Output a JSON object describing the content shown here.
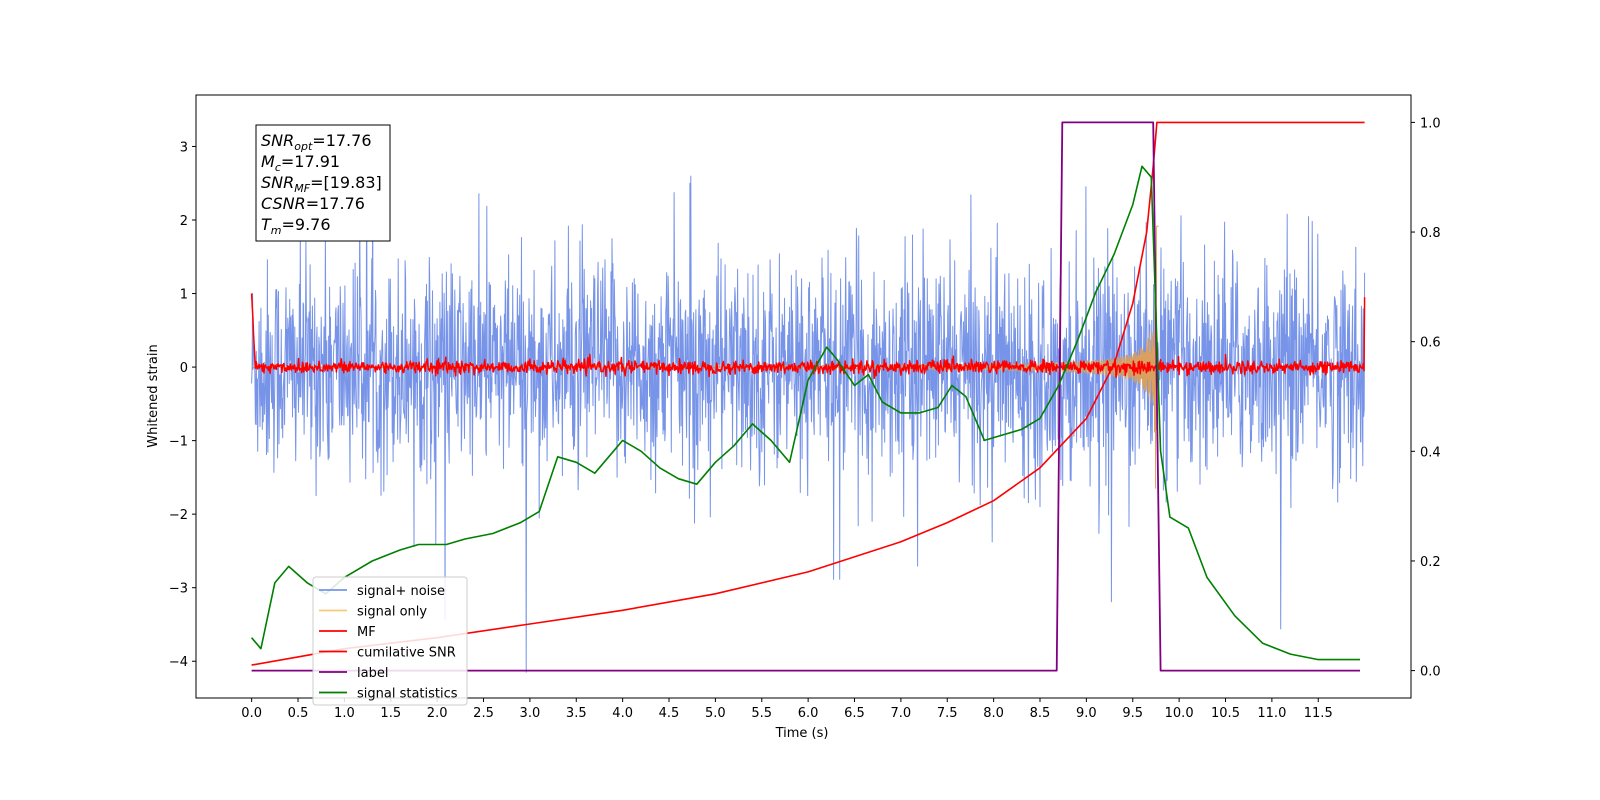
{
  "chart_data": {
    "type": "line",
    "xlabel": "Time (s)",
    "ylabel": "Whitened strain",
    "xlim": [
      -0.6,
      12.5
    ],
    "ylim_left": [
      -4.5,
      3.7
    ],
    "ylim_right": [
      -0.05,
      1.05
    ],
    "x_ticks": [
      0.0,
      0.5,
      1.0,
      1.5,
      2.0,
      2.5,
      3.0,
      3.5,
      4.0,
      4.5,
      5.0,
      5.5,
      6.0,
      6.5,
      7.0,
      7.5,
      8.0,
      8.5,
      9.0,
      9.5,
      10.0,
      10.5,
      11.0,
      11.5
    ],
    "x_tick_labels": [
      "0.0",
      "0.5",
      "1.0",
      "1.5",
      "2.0",
      "2.5",
      "3.0",
      "3.5",
      "4.0",
      "4.5",
      "5.0",
      "5.5",
      "6.0",
      "6.5",
      "7.0",
      "7.5",
      "8.0",
      "8.5",
      "9.0",
      "9.5",
      "10.0",
      "10.5",
      "11.0",
      "11.5"
    ],
    "y_ticks_left": [
      3,
      2,
      1,
      0,
      -1,
      -2,
      -3,
      -4
    ],
    "y_tick_labels_left": [
      "3",
      "2",
      "1",
      "0",
      "−1",
      "−2",
      "−3",
      "−4"
    ],
    "y_ticks_right": [
      1.0,
      0.8,
      0.6,
      0.4,
      0.2,
      0.0
    ],
    "y_tick_labels_right": [
      "1.0",
      "0.8",
      "0.6",
      "0.4",
      "0.2",
      "0.0"
    ],
    "grid": false,
    "legend_position": "lower-left",
    "annotation": {
      "lines": [
        {
          "main": "SNR",
          "sub": "opt",
          "value": "=17.76"
        },
        {
          "main": "M",
          "sub": "c",
          "value": "=17.91"
        },
        {
          "main": "SNR",
          "sub": "MF",
          "value": "=[19.83]"
        },
        {
          "main": "CSNR",
          "sub": "",
          "value": "=17.76"
        },
        {
          "main": "T",
          "sub": "m",
          "value": "=9.76"
        }
      ]
    },
    "series": [
      {
        "name": "signal+ noise",
        "color": "#7794e8",
        "axis": "left",
        "style": "noise",
        "x_range": [
          0.0,
          12.0
        ],
        "amplitude": 2.2
      },
      {
        "name": "signal only",
        "color": "#f5c97a",
        "axis": "left",
        "style": "chirp",
        "merger_time": 9.76,
        "peak_amplitude": 2.3
      },
      {
        "name": "MF",
        "color": "#ff0000",
        "axis": "left",
        "style": "noise",
        "x_range": [
          0.0,
          12.0
        ],
        "amplitude": 0.12,
        "edge_value": 1.0
      },
      {
        "name": "cumilative SNR",
        "color": "#ff0000",
        "axis": "right",
        "x": [
          0.0,
          0.5,
          1.0,
          2.0,
          3.0,
          4.0,
          5.0,
          6.0,
          7.0,
          7.5,
          8.0,
          8.5,
          9.0,
          9.3,
          9.5,
          9.65,
          9.72,
          9.76,
          12.0
        ],
        "y": [
          0.01,
          0.025,
          0.04,
          0.06,
          0.085,
          0.11,
          0.14,
          0.18,
          0.235,
          0.27,
          0.31,
          0.37,
          0.46,
          0.56,
          0.67,
          0.8,
          0.92,
          1.0,
          1.0
        ]
      },
      {
        "name": "label",
        "color": "#800080",
        "axis": "right",
        "x": [
          0.0,
          8.68,
          8.74,
          9.72,
          9.8,
          11.95
        ],
        "y": [
          0.0,
          0.0,
          1.0,
          1.0,
          0.0,
          0.0
        ]
      },
      {
        "name": "signal statistics",
        "color": "#008000",
        "axis": "right",
        "x": [
          0.0,
          0.1,
          0.25,
          0.4,
          0.6,
          0.8,
          1.0,
          1.3,
          1.6,
          1.8,
          2.1,
          2.3,
          2.6,
          2.9,
          3.1,
          3.3,
          3.5,
          3.7,
          3.9,
          4.0,
          4.2,
          4.4,
          4.6,
          4.8,
          5.0,
          5.2,
          5.4,
          5.6,
          5.8,
          6.0,
          6.2,
          6.3,
          6.5,
          6.65,
          6.8,
          7.0,
          7.2,
          7.4,
          7.55,
          7.7,
          7.9,
          8.1,
          8.3,
          8.5,
          8.7,
          8.9,
          9.1,
          9.3,
          9.5,
          9.6,
          9.7,
          9.8,
          9.9,
          10.1,
          10.3,
          10.6,
          10.9,
          11.2,
          11.5,
          11.95
        ],
        "y": [
          0.06,
          0.04,
          0.16,
          0.19,
          0.16,
          0.14,
          0.17,
          0.2,
          0.22,
          0.23,
          0.23,
          0.24,
          0.25,
          0.27,
          0.29,
          0.39,
          0.38,
          0.36,
          0.4,
          0.42,
          0.4,
          0.37,
          0.35,
          0.34,
          0.38,
          0.41,
          0.45,
          0.42,
          0.38,
          0.53,
          0.59,
          0.57,
          0.52,
          0.54,
          0.49,
          0.47,
          0.47,
          0.48,
          0.52,
          0.5,
          0.42,
          0.43,
          0.44,
          0.46,
          0.52,
          0.6,
          0.69,
          0.76,
          0.85,
          0.92,
          0.9,
          0.4,
          0.28,
          0.26,
          0.17,
          0.1,
          0.05,
          0.03,
          0.02,
          0.02
        ]
      }
    ]
  }
}
